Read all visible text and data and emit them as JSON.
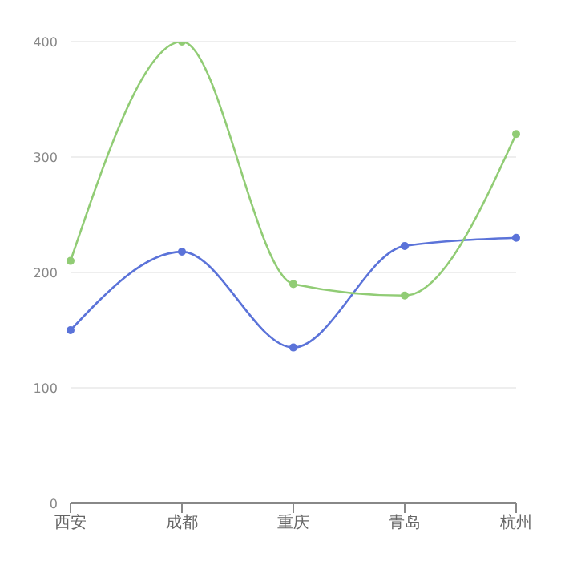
{
  "chart_data": {
    "type": "line",
    "categories": [
      "西安",
      "成都",
      "重庆",
      "青岛",
      "杭州"
    ],
    "series": [
      {
        "color": "#5b73d9",
        "values": [
          150,
          218,
          135,
          223,
          230
        ]
      },
      {
        "color": "#91cc75",
        "values": [
          210,
          400,
          190,
          180,
          320
        ]
      }
    ],
    "ylim": [
      0,
      400
    ],
    "yticks": [
      0,
      100,
      200,
      300,
      400
    ],
    "grid": "y",
    "marker": "circle",
    "line_style": "solid"
  }
}
